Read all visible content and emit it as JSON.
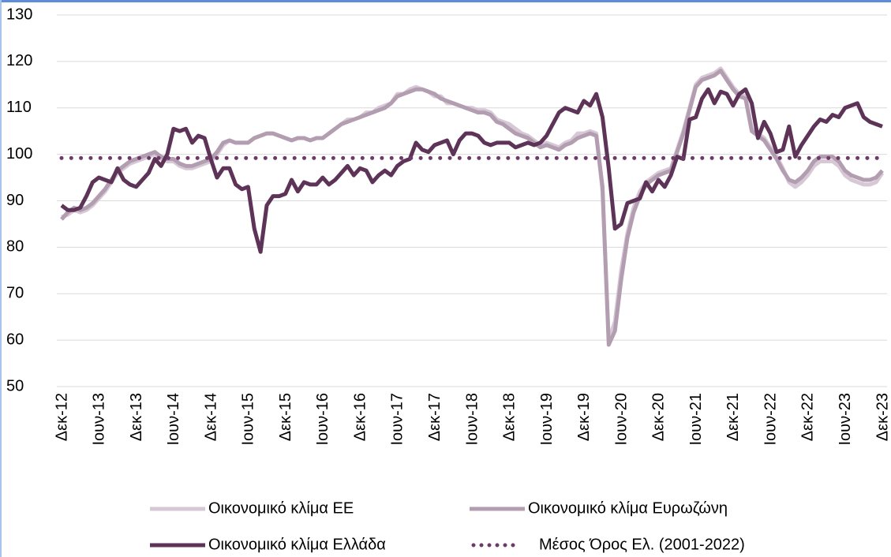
{
  "chart_data": {
    "type": "line",
    "categories": [
      "Δεκ-12",
      null,
      null,
      null,
      null,
      null,
      "Ιουν-13",
      null,
      null,
      null,
      null,
      null,
      "Δεκ-13",
      null,
      null,
      null,
      null,
      null,
      "Ιουν-14",
      null,
      null,
      null,
      null,
      null,
      "Δεκ-14",
      null,
      null,
      null,
      null,
      null,
      "Ιουν-15",
      null,
      null,
      null,
      null,
      null,
      "Δεκ-15",
      null,
      null,
      null,
      null,
      null,
      "Ιουν-16",
      null,
      null,
      null,
      null,
      null,
      "Δεκ-16",
      null,
      null,
      null,
      null,
      null,
      "Ιουν-17",
      null,
      null,
      null,
      null,
      null,
      "Δεκ-17",
      null,
      null,
      null,
      null,
      null,
      "Ιουν-18",
      null,
      null,
      null,
      null,
      null,
      "Δεκ-18",
      null,
      null,
      null,
      null,
      null,
      "Ιουν-19",
      null,
      null,
      null,
      null,
      null,
      "Δεκ-19",
      null,
      null,
      null,
      null,
      null,
      "Ιουν-20",
      null,
      null,
      null,
      null,
      null,
      "Δεκ-20",
      null,
      null,
      null,
      null,
      null,
      "Ιουν-21",
      null,
      null,
      null,
      null,
      null,
      "Δεκ-21",
      null,
      null,
      null,
      null,
      null,
      "Ιουν-22",
      null,
      null,
      null,
      null,
      null,
      "Δεκ-22",
      null,
      null,
      null,
      null,
      null,
      "Ιουν-23",
      null,
      null,
      null,
      null,
      null,
      "Δεκ-23"
    ],
    "ylim": [
      50,
      130
    ],
    "yticks": [
      50,
      60,
      70,
      80,
      90,
      100,
      110,
      120,
      130
    ],
    "grid": true,
    "series": [
      {
        "name": "Οικονομικό κλίμα ΕΕ",
        "color": "#d7c8d5",
        "style": "solid",
        "values": [
          86.5,
          87,
          88,
          87.5,
          88,
          89,
          90.5,
          92,
          94,
          96,
          97,
          98,
          98.5,
          99,
          99.5,
          100,
          99,
          98.5,
          98.5,
          97.5,
          97,
          97,
          97.5,
          98,
          98.5,
          100,
          102,
          103,
          102.5,
          102.5,
          102.5,
          103.5,
          104,
          104.5,
          104.5,
          104,
          103.5,
          103,
          103.5,
          103.5,
          103,
          103.5,
          103.5,
          104.5,
          105.5,
          106.5,
          107.5,
          107.5,
          108,
          109,
          109,
          110,
          110.5,
          111,
          113,
          113,
          114,
          114.5,
          114,
          113.5,
          112.5,
          112.5,
          111,
          111,
          110.5,
          110,
          110,
          109.5,
          109.5,
          109,
          107.5,
          107,
          106.5,
          105.5,
          104.5,
          104,
          103,
          102,
          102.5,
          102,
          101.5,
          102.5,
          103,
          104.5,
          104.5,
          105,
          104.5,
          92,
          60,
          64,
          75,
          83,
          88.5,
          92,
          94,
          95,
          96,
          96.5,
          97,
          101,
          105,
          110,
          115,
          116.5,
          117,
          117.5,
          118.5,
          116.5,
          114.5,
          113,
          112.5,
          105.5,
          104.5,
          103.5,
          101.5,
          99.5,
          97,
          94,
          93,
          94,
          95.5,
          97.5,
          98.5,
          98.5,
          98.5,
          97.5,
          95.5,
          94.5,
          94,
          93.5,
          93.5,
          94,
          96
        ]
      },
      {
        "name": "Οικονομικό κλίμα Ευρωζώνη",
        "color": "#b39db1",
        "style": "solid",
        "values": [
          86,
          87.5,
          88.5,
          88,
          88.5,
          89.5,
          91,
          92.5,
          94.5,
          96.5,
          97.5,
          98.5,
          99,
          99.5,
          100,
          100.5,
          99.5,
          99,
          99,
          98,
          97.5,
          97.5,
          98,
          98.5,
          99,
          100.5,
          102.5,
          103,
          102.5,
          102.5,
          102.5,
          103.5,
          104,
          104.5,
          104.5,
          104,
          103.5,
          103,
          103.5,
          103.5,
          103,
          103.5,
          103.5,
          104.5,
          105.5,
          106.5,
          107,
          107.5,
          108,
          108.5,
          109,
          109.5,
          110,
          111,
          112.5,
          113,
          113.5,
          114,
          114,
          113.5,
          113,
          112,
          111.5,
          111,
          110.5,
          110,
          109.5,
          109,
          109,
          108.5,
          107,
          106.5,
          105.5,
          104.5,
          104,
          103.5,
          102.5,
          101.5,
          102,
          101.5,
          101,
          102,
          102.5,
          103.5,
          104,
          104.5,
          104,
          93,
          59,
          62,
          73,
          82,
          87.5,
          91,
          93.5,
          94.5,
          95.5,
          96,
          96.5,
          100.5,
          104.5,
          109.5,
          114.5,
          116,
          116.5,
          117,
          118,
          116,
          114,
          112.5,
          112,
          105,
          104,
          103,
          101,
          99,
          96.5,
          94.5,
          94,
          95,
          96.5,
          98.5,
          99.5,
          99.5,
          99.5,
          98.5,
          96.5,
          95.5,
          95,
          94.5,
          94.5,
          95,
          96.5
        ]
      },
      {
        "name": "Οικονομικό κλίμα Ελλάδα",
        "color": "#5e3358",
        "style": "solid",
        "values": [
          89,
          88,
          88,
          88.5,
          91,
          94,
          95,
          94.5,
          94,
          97,
          94.5,
          93.5,
          93,
          94.5,
          96,
          99,
          97.5,
          100,
          105.5,
          105,
          105.5,
          102.5,
          104,
          103.5,
          99,
          95,
          97,
          97,
          93.5,
          92.5,
          93,
          84,
          79,
          89,
          91,
          91,
          91.5,
          94.5,
          92,
          94,
          93.5,
          93.5,
          95,
          93.5,
          94.5,
          96,
          97.5,
          95.5,
          97,
          96.5,
          94,
          95.5,
          96.5,
          95.5,
          97.5,
          98.5,
          99,
          102.5,
          101,
          100.5,
          102,
          102.5,
          103,
          100,
          103,
          104.5,
          104.5,
          104,
          102.5,
          102,
          102.5,
          102.5,
          102.5,
          101.5,
          102,
          102.5,
          102,
          102.5,
          104,
          106.5,
          109,
          110,
          109.5,
          109,
          111.5,
          110.5,
          113,
          108,
          97,
          84,
          85,
          89.5,
          90,
          90.5,
          94,
          92,
          94.5,
          93,
          95.5,
          99.5,
          99,
          107.5,
          108,
          112,
          114,
          111,
          113.5,
          113,
          110.5,
          113,
          114,
          111,
          103.5,
          107,
          104.5,
          100.5,
          101,
          106,
          99.5,
          102,
          104,
          106,
          107.5,
          107,
          108.5,
          108,
          110,
          110.5,
          111,
          108,
          107,
          106.5,
          106
        ]
      },
      {
        "name": "Μέσος Όρος Ελ. (2001-2022)",
        "color": "#6e3a67",
        "style": "dotted",
        "values": [
          99.2,
          99.2,
          99.2,
          99.2,
          99.2,
          99.2,
          99.2,
          99.2,
          99.2,
          99.2,
          99.2,
          99.2,
          99.2,
          99.2,
          99.2,
          99.2,
          99.2,
          99.2,
          99.2,
          99.2,
          99.2,
          99.2,
          99.2,
          99.2,
          99.2,
          99.2,
          99.2,
          99.2,
          99.2,
          99.2,
          99.2,
          99.2,
          99.2,
          99.2,
          99.2,
          99.2,
          99.2,
          99.2,
          99.2,
          99.2,
          99.2,
          99.2,
          99.2,
          99.2,
          99.2,
          99.2,
          99.2,
          99.2,
          99.2,
          99.2,
          99.2,
          99.2,
          99.2,
          99.2,
          99.2,
          99.2,
          99.2,
          99.2,
          99.2,
          99.2,
          99.2,
          99.2,
          99.2,
          99.2,
          99.2,
          99.2,
          99.2,
          99.2,
          99.2,
          99.2,
          99.2,
          99.2,
          99.2,
          99.2,
          99.2,
          99.2,
          99.2,
          99.2,
          99.2,
          99.2,
          99.2,
          99.2,
          99.2,
          99.2,
          99.2,
          99.2,
          99.2,
          99.2,
          99.2,
          99.2,
          99.2,
          99.2,
          99.2,
          99.2,
          99.2,
          99.2,
          99.2,
          99.2,
          99.2,
          99.2,
          99.2,
          99.2,
          99.2,
          99.2,
          99.2,
          99.2,
          99.2,
          99.2,
          99.2,
          99.2,
          99.2,
          99.2,
          99.2,
          99.2,
          99.2,
          99.2,
          99.2,
          99.2,
          99.2,
          99.2,
          99.2,
          99.2,
          99.2,
          99.2,
          99.2,
          99.2,
          99.2,
          99.2,
          99.2,
          99.2,
          99.2,
          99.2,
          99.2
        ]
      }
    ]
  }
}
